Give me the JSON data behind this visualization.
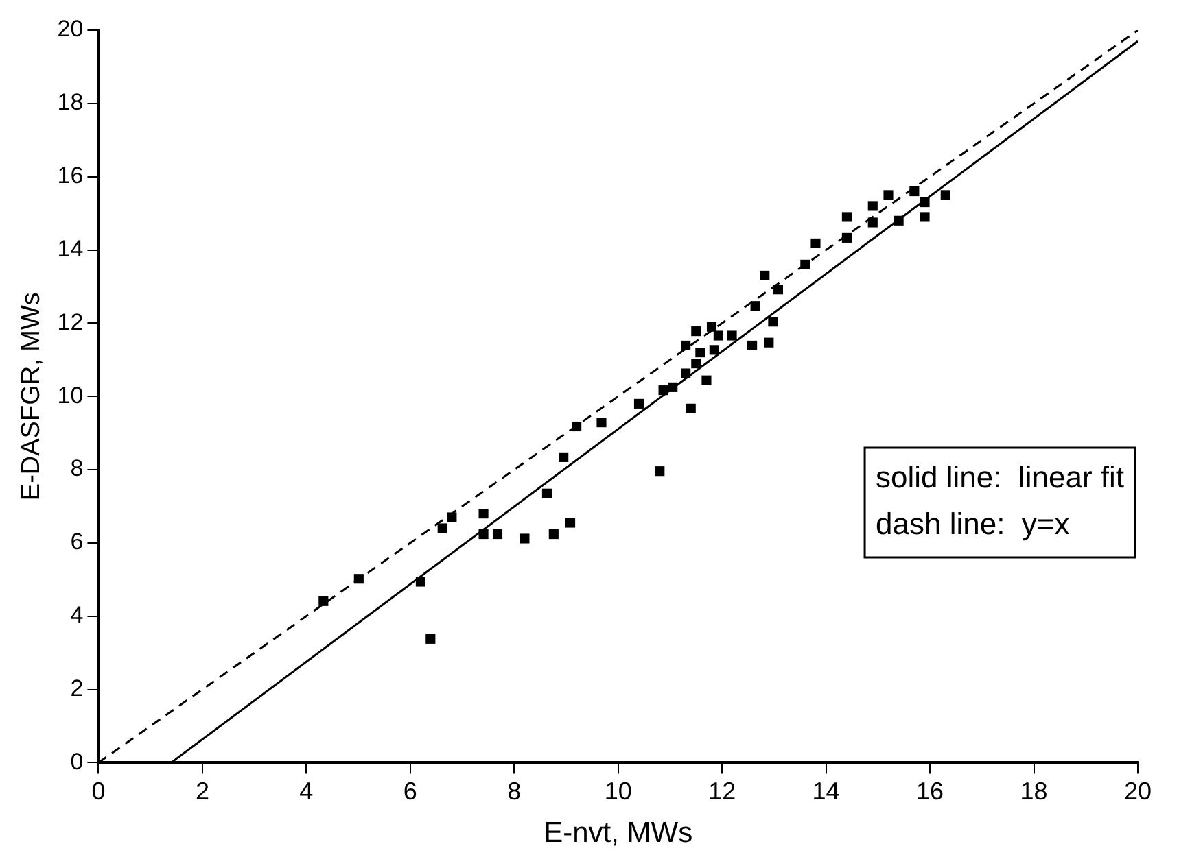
{
  "chart_data": {
    "type": "scatter",
    "xlabel": "E-nvt, MWs",
    "ylabel": "E-DASFGR, MWs",
    "xlim": [
      0,
      20
    ],
    "ylim": [
      0,
      20
    ],
    "xticks": [
      0,
      2,
      4,
      6,
      8,
      10,
      12,
      14,
      16,
      18,
      20
    ],
    "yticks": [
      0,
      2,
      4,
      6,
      8,
      10,
      12,
      14,
      16,
      18,
      20
    ],
    "legend": false,
    "annotations": [
      "solid line:  linear fit",
      "dash line:  y=x"
    ],
    "series": [
      {
        "color": "#000000",
        "marker": "square",
        "x": [
          4.33,
          5.01,
          6.2,
          6.39,
          6.62,
          6.8,
          7.41,
          7.41,
          7.68,
          8.2,
          8.63,
          8.76,
          8.95,
          9.08,
          9.2,
          9.68,
          10.4,
          10.8,
          10.87,
          11.05,
          11.4,
          11.3,
          11.7,
          11.5,
          11.3,
          11.5,
          11.8,
          11.93,
          11.58,
          11.85,
          12.19,
          12.58,
          12.9,
          12.98,
          12.64,
          13.08,
          12.82,
          13.6,
          13.8,
          14.4,
          14.4,
          14.9,
          14.9,
          15.2,
          15.4,
          15.7,
          15.9,
          15.9,
          16.3
        ],
        "values": [
          4.41,
          5.02,
          4.94,
          3.38,
          6.4,
          6.7,
          6.8,
          6.24,
          6.24,
          6.12,
          7.35,
          6.24,
          8.34,
          6.55,
          9.18,
          9.29,
          9.8,
          7.96,
          10.17,
          10.25,
          9.67,
          10.63,
          10.44,
          10.9,
          11.39,
          11.78,
          11.9,
          11.66,
          11.2,
          11.27,
          11.66,
          11.39,
          11.47,
          12.04,
          12.47,
          12.92,
          13.3,
          13.6,
          14.18,
          14.33,
          14.9,
          15.2,
          14.75,
          15.5,
          14.8,
          15.6,
          15.3,
          14.9,
          15.5
        ]
      },
      {
        "type": "line",
        "color": "#000000",
        "line_style": "solid",
        "marker": "none",
        "x": [
          1.4,
          20
        ],
        "values": [
          0,
          19.7
        ]
      },
      {
        "type": "line",
        "color": "#000000",
        "line_style": "dashed",
        "marker": "none",
        "x": [
          0,
          20
        ],
        "values": [
          0,
          20
        ]
      }
    ]
  }
}
